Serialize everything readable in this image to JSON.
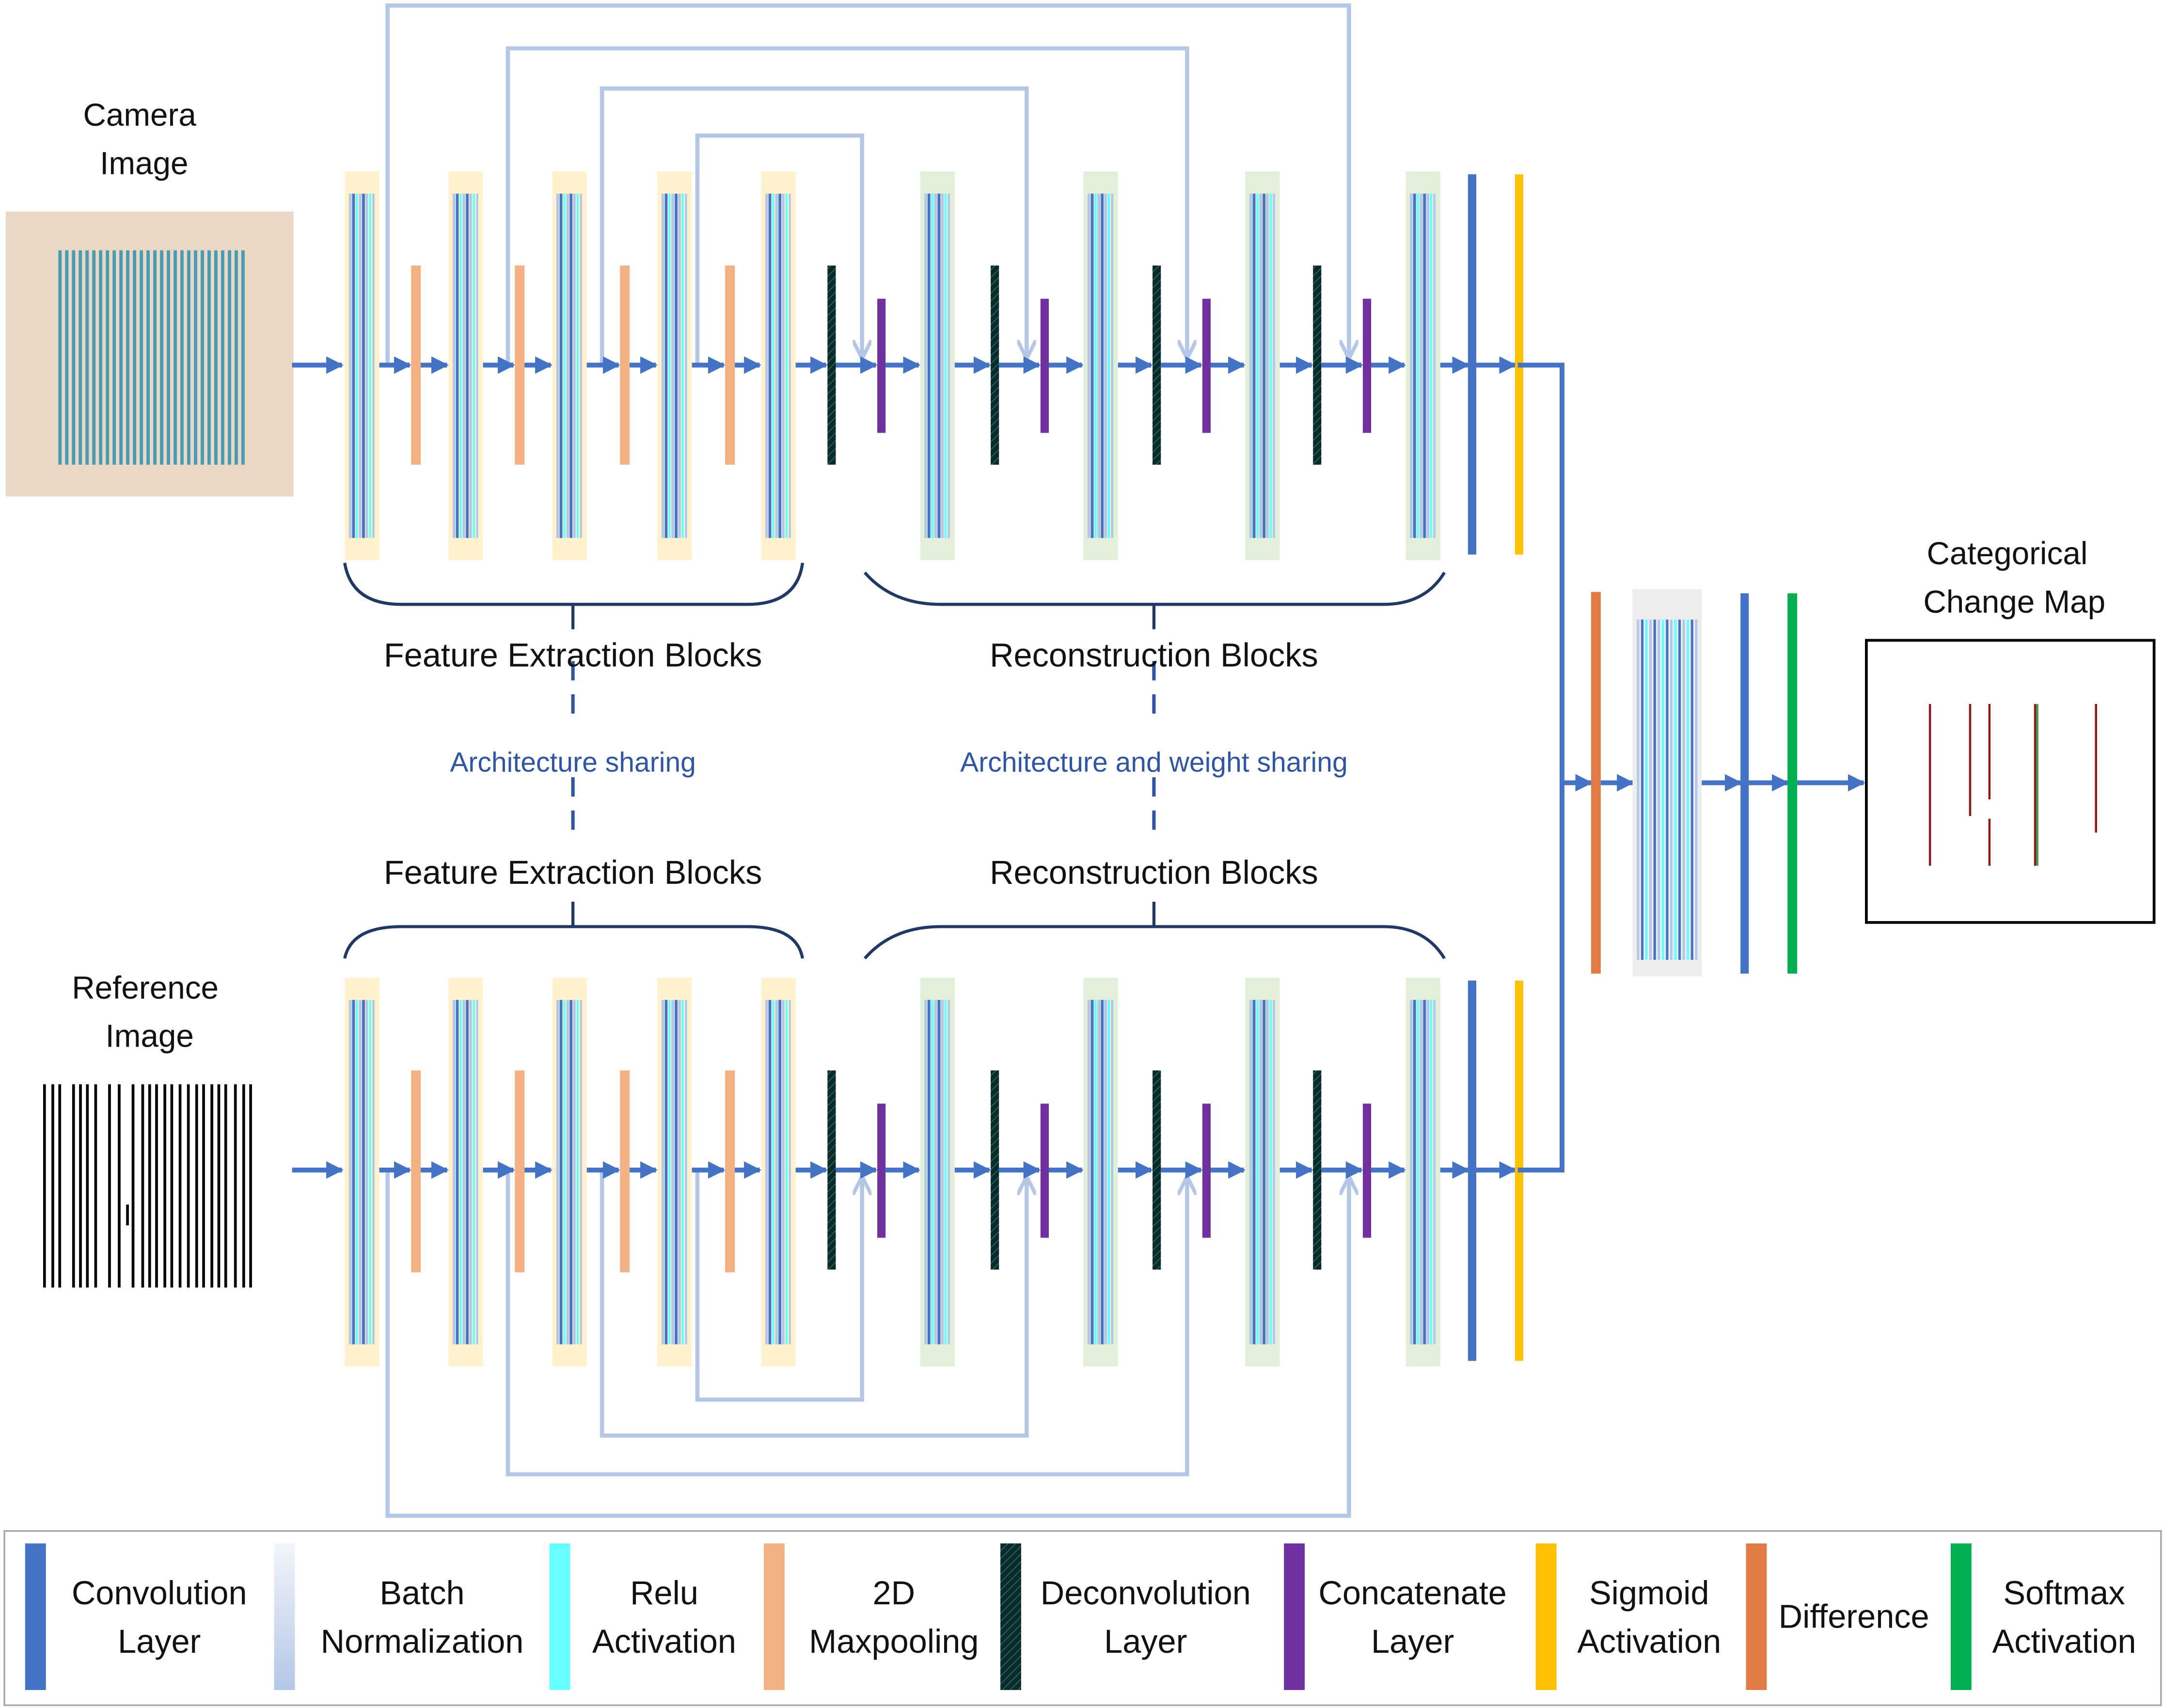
{
  "labels": {
    "camera_image": [
      "Camera",
      "Image"
    ],
    "reference_image": [
      "Reference",
      "Image"
    ],
    "feature_extraction_top": "Feature Extraction Blocks",
    "reconstruction_top": "Reconstruction Blocks",
    "feature_extraction_bottom": "Feature Extraction Blocks",
    "reconstruction_bottom": "Reconstruction Blocks",
    "architecture_sharing": "Architecture sharing",
    "architecture_weight_sharing": "Architecture and weight sharing",
    "output_map": [
      "Categorical",
      "Change Map"
    ]
  },
  "legend": [
    {
      "label": [
        "Convolution",
        "Layer"
      ],
      "color": "#4472C4",
      "icon": "convolution-layer"
    },
    {
      "label": [
        "Batch",
        "Normalization"
      ],
      "color": "#B4C7E7",
      "icon": "batch-normalization"
    },
    {
      "label": [
        "Relu",
        "Activation"
      ],
      "color": "#66FFFF",
      "icon": "relu-activation"
    },
    {
      "label": [
        "2D",
        "Maxpooling"
      ],
      "color": "#F4B183",
      "icon": "maxpooling"
    },
    {
      "label": [
        "Deconvolution",
        "Layer"
      ],
      "color": "#0C2A2A",
      "icon": "deconvolution-layer"
    },
    {
      "label": [
        "Concatenate",
        "Layer"
      ],
      "color": "#7030A0",
      "icon": "concatenate-layer"
    },
    {
      "label": [
        "Sigmoid",
        "Activation"
      ],
      "color": "#FFC000",
      "icon": "sigmoid-activation"
    },
    {
      "label": [
        "Difference"
      ],
      "color": "#E07B45",
      "icon": "difference-layer"
    },
    {
      "label": [
        "Softmax",
        "Activation"
      ],
      "color": "#00B050",
      "icon": "softmax-activation"
    }
  ],
  "colors": {
    "arrow": "#4472C4",
    "skip": "#B4C7E7",
    "encoder_block": "#FFF2CC",
    "decoder_block": "#E2F0D9",
    "fusion_block": "#EDEDED",
    "brace": "#1F3864",
    "share_text": "#2F55A4",
    "change_lines": "#8B1A1A",
    "camera_background": "#E9D8C6",
    "camera_stripes": "#3A93B0"
  }
}
